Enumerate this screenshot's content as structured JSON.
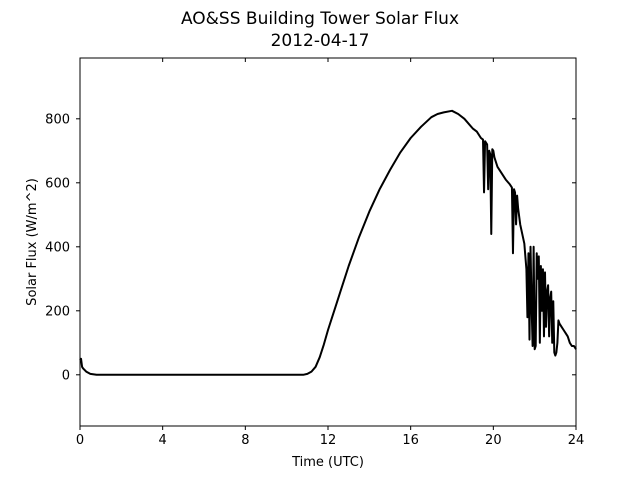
{
  "chart_data": {
    "type": "line",
    "title": "AO&SS Building Tower Solar Flux",
    "subtitle": "2012-04-17",
    "xlabel": "Time (UTC)",
    "ylabel": "Solar Flux (W/m^2)",
    "xlim": [
      0,
      24
    ],
    "ylim": [
      -160,
      990
    ],
    "xticks": [
      0,
      4,
      8,
      12,
      16,
      20,
      24
    ],
    "yticks": [
      0,
      200,
      400,
      600,
      800
    ],
    "grid": false,
    "line_color": "#000000",
    "series": [
      {
        "x": [
          0,
          0.05,
          0.1,
          0.15,
          0.3,
          0.5,
          0.8,
          1.0,
          1.5,
          3,
          5,
          7,
          9,
          10,
          10.8,
          11.0,
          11.2,
          11.4,
          11.6,
          11.8,
          12.0,
          12.2,
          12.4,
          12.6,
          12.8,
          13.0,
          13.5,
          14.0,
          14.5,
          15.0,
          15.5,
          16.0,
          16.5,
          17.0,
          17.3,
          17.6,
          18.0,
          18.3,
          18.6,
          19.0,
          19.2,
          19.4,
          19.5,
          19.55,
          19.6,
          19.7,
          19.75,
          19.8,
          19.85,
          19.9,
          19.95,
          20.0,
          20.05,
          20.1,
          20.2,
          20.4,
          20.6,
          20.8,
          20.9,
          20.95,
          21.0,
          21.05,
          21.1,
          21.15,
          21.2,
          21.3,
          21.5,
          21.6,
          21.65,
          21.7,
          21.75,
          21.8,
          21.85,
          21.9,
          21.95,
          22.0,
          22.05,
          22.1,
          22.15,
          22.2,
          22.25,
          22.3,
          22.35,
          22.4,
          22.45,
          22.5,
          22.55,
          22.6,
          22.65,
          22.7,
          22.75,
          22.8,
          22.85,
          22.9,
          22.95,
          23.0,
          23.05,
          23.1,
          23.15,
          23.2,
          23.3,
          23.4,
          23.5,
          23.6,
          23.7,
          23.8,
          23.9,
          24.0
        ],
        "values": [
          45,
          50,
          25,
          20,
          10,
          3,
          0,
          0,
          0,
          0,
          0,
          0,
          0,
          0,
          0,
          3,
          10,
          25,
          55,
          95,
          140,
          180,
          220,
          260,
          300,
          340,
          430,
          510,
          580,
          640,
          695,
          740,
          775,
          805,
          815,
          820,
          825,
          815,
          800,
          770,
          760,
          740,
          735,
          570,
          730,
          720,
          580,
          700,
          690,
          440,
          705,
          700,
          680,
          670,
          650,
          630,
          610,
          595,
          585,
          380,
          580,
          570,
          470,
          560,
          520,
          470,
          410,
          330,
          180,
          380,
          110,
          400,
          220,
          90,
          400,
          80,
          90,
          380,
          300,
          370,
          100,
          340,
          200,
          330,
          120,
          320,
          150,
          260,
          280,
          120,
          240,
          260,
          100,
          230,
          70,
          60,
          70,
          100,
          170,
          160,
          150,
          140,
          130,
          120,
          100,
          90,
          90,
          80
        ]
      }
    ]
  }
}
